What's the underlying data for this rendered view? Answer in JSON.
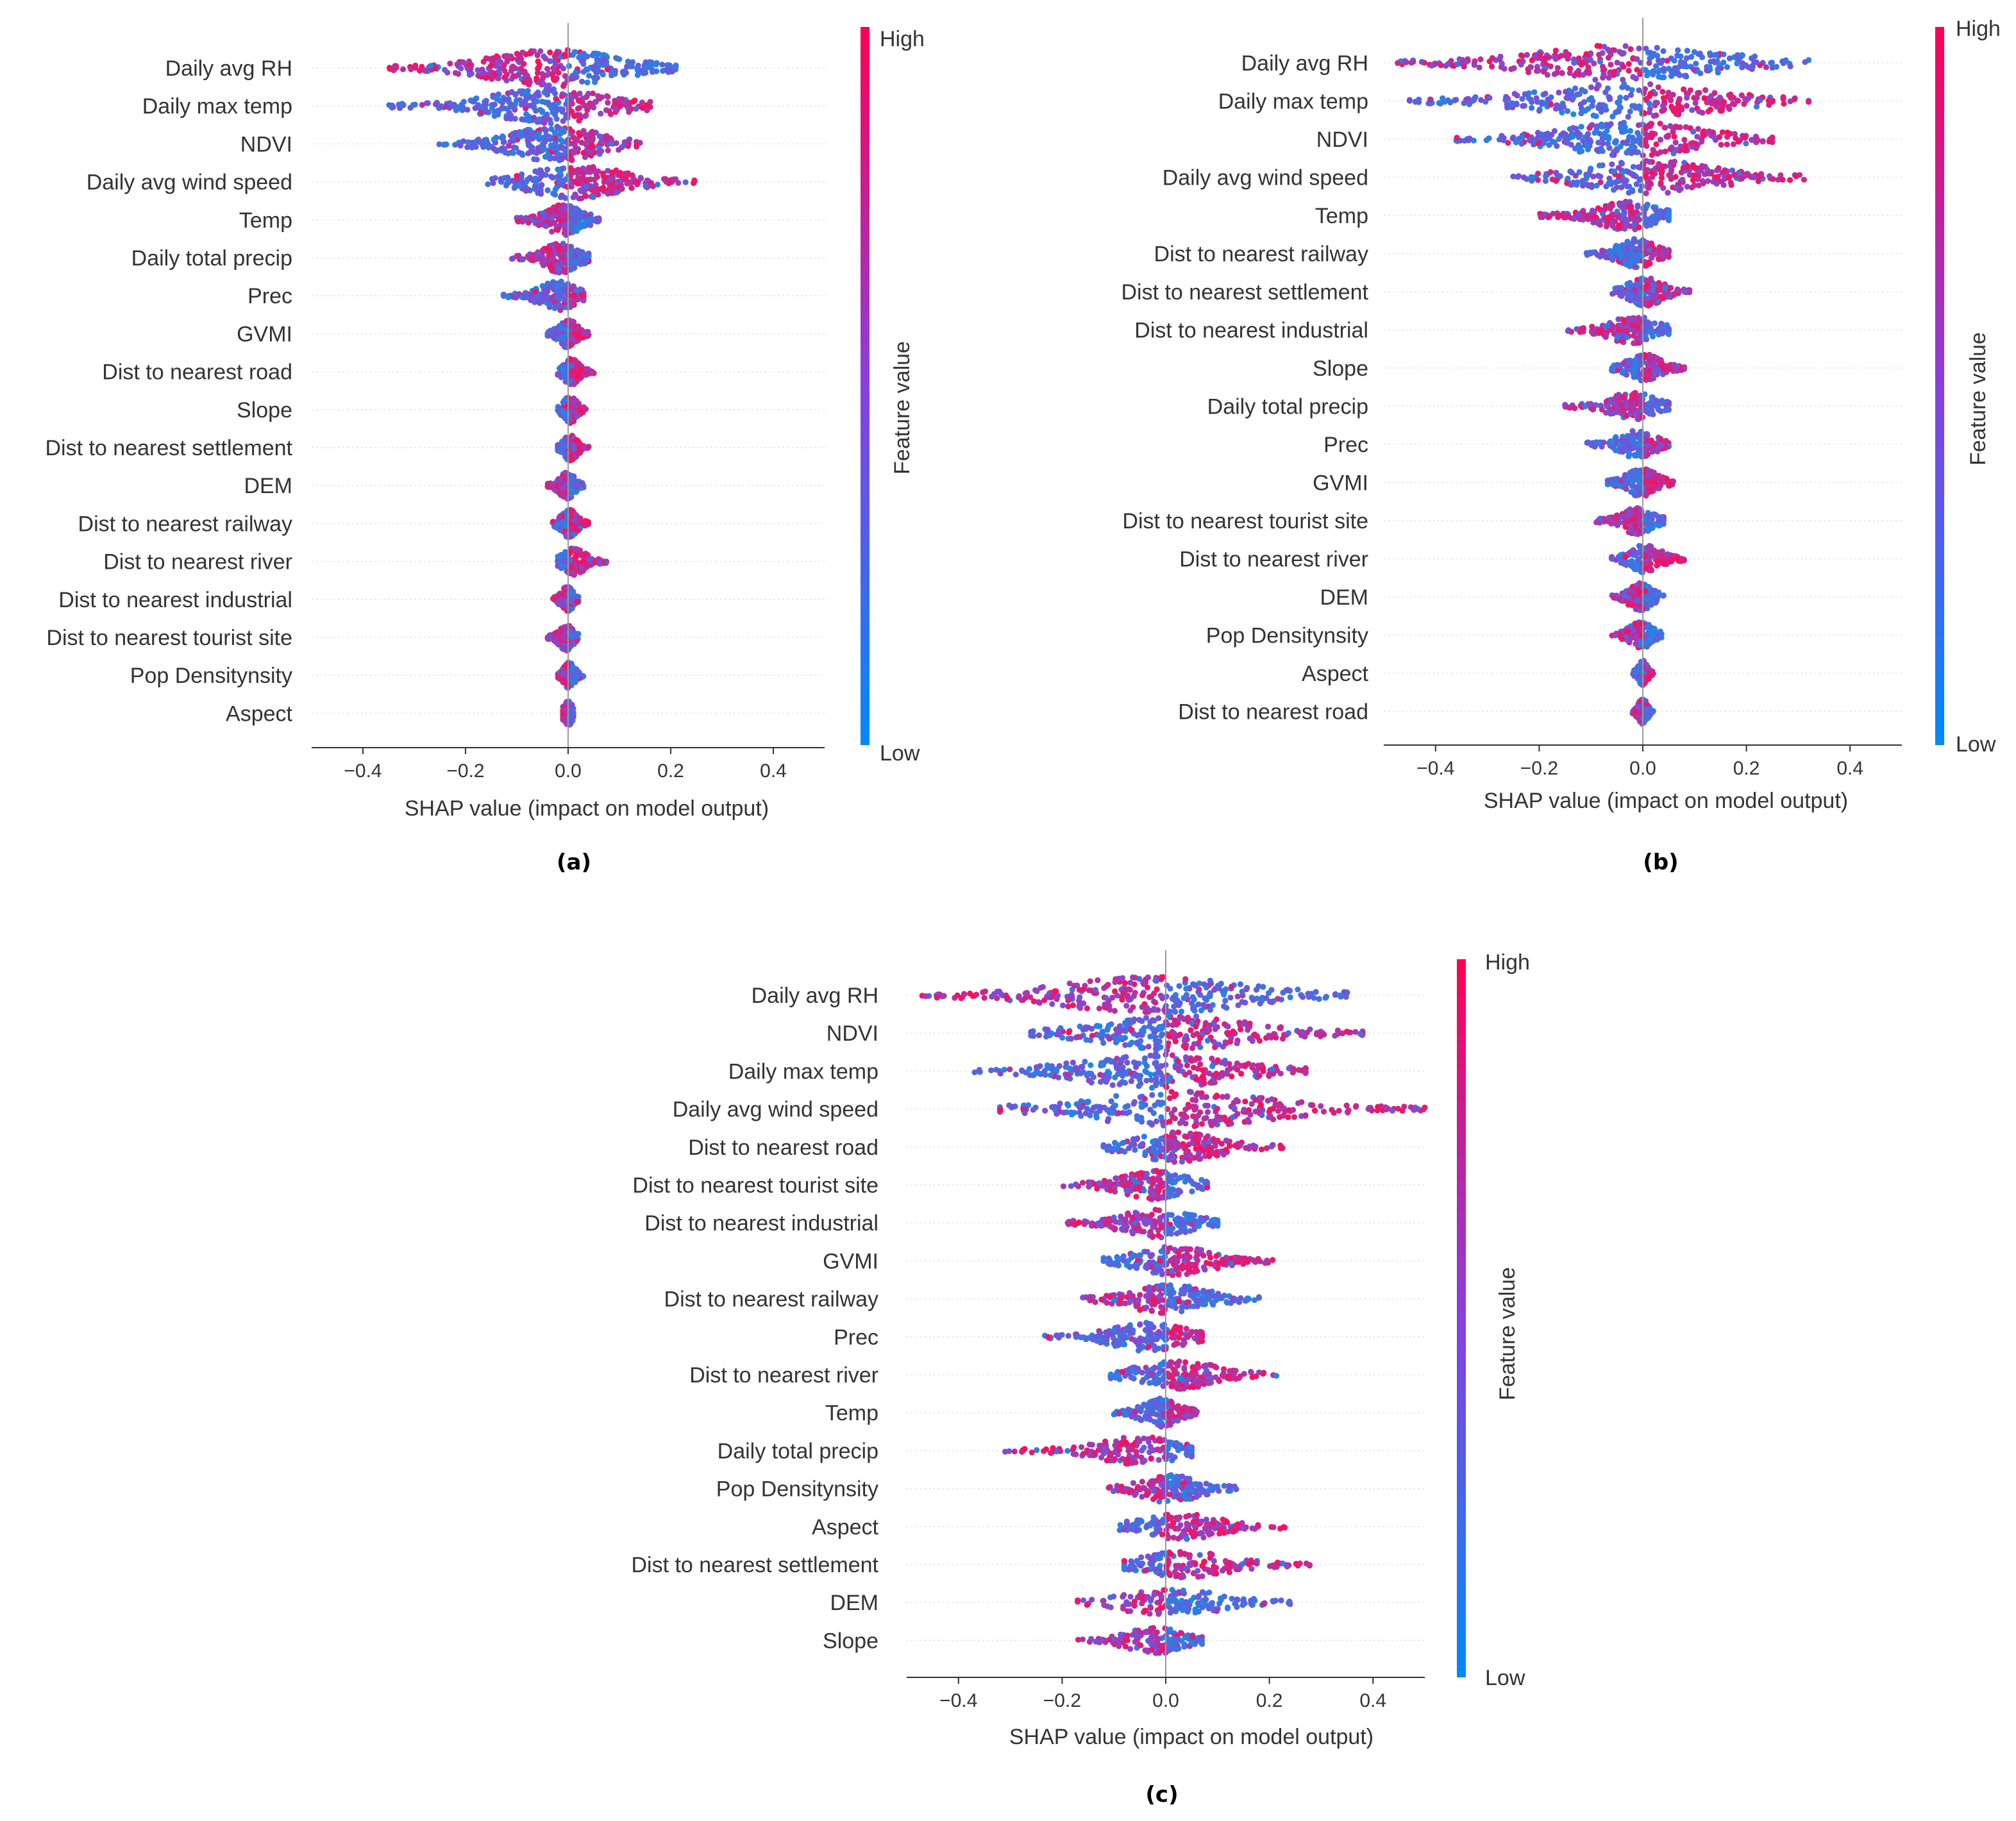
{
  "colors": {
    "low": "#1e88e5",
    "mid": "#7b4ed8",
    "high": "#ff0d57",
    "axis": "#333333",
    "zero_line": "#999999"
  },
  "chart_data": [
    {
      "type": "scatter",
      "subtype": "shap-beeswarm",
      "panel_label": "(a)",
      "xlabel": "SHAP value (impact on model output)",
      "xlim": [
        -0.5,
        0.5
      ],
      "x_ticks": [
        -0.4,
        -0.2,
        0.0,
        0.2,
        0.4
      ],
      "x_tick_labels": [
        "−0.4",
        "−0.2",
        "0.0",
        "0.2",
        "0.4"
      ],
      "colorbar": {
        "label": "Feature value",
        "high": "High",
        "low": "Low"
      },
      "features": [
        {
          "name": "Daily avg RH",
          "min": -0.35,
          "max": 0.21,
          "pos_color": "low",
          "spread": 1.0
        },
        {
          "name": "Daily max temp",
          "min": -0.35,
          "max": 0.16,
          "pos_color": "high",
          "spread": 0.85
        },
        {
          "name": "NDVI",
          "min": -0.26,
          "max": 0.14,
          "pos_color": "high",
          "spread": 0.85
        },
        {
          "name": "Daily avg wind speed",
          "min": -0.16,
          "max": 0.25,
          "pos_color": "high",
          "spread": 0.8
        },
        {
          "name": "Temp",
          "min": -0.1,
          "max": 0.06,
          "pos_color": "low",
          "spread": 0.6
        },
        {
          "name": "Daily total precip",
          "min": -0.11,
          "max": 0.04,
          "pos_color": "low",
          "spread": 0.55
        },
        {
          "name": "Prec",
          "min": -0.13,
          "max": 0.03,
          "pos_color": "high",
          "spread": 0.5
        },
        {
          "name": "GVMI",
          "min": -0.04,
          "max": 0.04,
          "pos_color": "high",
          "spread": 0.45
        },
        {
          "name": "Dist to nearest road",
          "min": -0.02,
          "max": 0.05,
          "pos_color": "high",
          "spread": 0.35
        },
        {
          "name": "Slope",
          "min": -0.02,
          "max": 0.04,
          "pos_color": "high",
          "spread": 0.35
        },
        {
          "name": "Dist to nearest settlement",
          "min": -0.02,
          "max": 0.04,
          "pos_color": "high",
          "spread": 0.35
        },
        {
          "name": "DEM",
          "min": -0.04,
          "max": 0.03,
          "pos_color": "low",
          "spread": 0.4
        },
        {
          "name": "Dist to nearest railway",
          "min": -0.03,
          "max": 0.04,
          "pos_color": "high",
          "spread": 0.4
        },
        {
          "name": "Dist to nearest river",
          "min": -0.02,
          "max": 0.08,
          "pos_color": "high",
          "spread": 0.35
        },
        {
          "name": "Dist to nearest industrial",
          "min": -0.03,
          "max": 0.02,
          "pos_color": "low",
          "spread": 0.35
        },
        {
          "name": "Dist to nearest tourist site",
          "min": -0.04,
          "max": 0.02,
          "pos_color": "low",
          "spread": 0.35
        },
        {
          "name": "Pop  Densitynsity",
          "min": -0.02,
          "max": 0.03,
          "pos_color": "low",
          "spread": 0.3
        },
        {
          "name": "Aspect",
          "min": -0.01,
          "max": 0.01,
          "pos_color": "low",
          "spread": 0.2
        }
      ]
    },
    {
      "type": "scatter",
      "subtype": "shap-beeswarm",
      "panel_label": "(b)",
      "xlabel": "SHAP value (impact on model output)",
      "xlim": [
        -0.5,
        0.5
      ],
      "x_ticks": [
        -0.4,
        -0.2,
        0.0,
        0.2,
        0.4
      ],
      "x_tick_labels": [
        "−0.4",
        "−0.2",
        "0.0",
        "0.2",
        "0.4"
      ],
      "colorbar": {
        "label": "Feature value",
        "high": "High",
        "low": "Low"
      },
      "features": [
        {
          "name": "Daily avg RH",
          "min": -0.48,
          "max": 0.32,
          "pos_color": "low",
          "spread": 0.95
        },
        {
          "name": "Daily max temp",
          "min": -0.45,
          "max": 0.32,
          "pos_color": "high",
          "spread": 0.85
        },
        {
          "name": "NDVI",
          "min": -0.36,
          "max": 0.25,
          "pos_color": "high",
          "spread": 0.85
        },
        {
          "name": "Daily avg wind speed",
          "min": -0.25,
          "max": 0.32,
          "pos_color": "high",
          "spread": 0.8
        },
        {
          "name": "Temp",
          "min": -0.2,
          "max": 0.05,
          "pos_color": "low",
          "spread": 0.55
        },
        {
          "name": "Dist to nearest railway",
          "min": -0.11,
          "max": 0.05,
          "pos_color": "high",
          "spread": 0.5
        },
        {
          "name": "Dist to nearest settlement",
          "min": -0.06,
          "max": 0.09,
          "pos_color": "high",
          "spread": 0.45
        },
        {
          "name": "Dist to nearest industrial",
          "min": -0.15,
          "max": 0.05,
          "pos_color": "low",
          "spread": 0.45
        },
        {
          "name": "Slope",
          "min": -0.06,
          "max": 0.08,
          "pos_color": "high",
          "spread": 0.4
        },
        {
          "name": "Daily total precip",
          "min": -0.15,
          "max": 0.05,
          "pos_color": "low",
          "spread": 0.4
        },
        {
          "name": "Prec",
          "min": -0.11,
          "max": 0.05,
          "pos_color": "high",
          "spread": 0.4
        },
        {
          "name": "GVMI",
          "min": -0.07,
          "max": 0.06,
          "pos_color": "high",
          "spread": 0.45
        },
        {
          "name": "Dist to nearest tourist site",
          "min": -0.09,
          "max": 0.04,
          "pos_color": "low",
          "spread": 0.4
        },
        {
          "name": "Dist to nearest river",
          "min": -0.06,
          "max": 0.08,
          "pos_color": "high",
          "spread": 0.4
        },
        {
          "name": "DEM",
          "min": -0.06,
          "max": 0.04,
          "pos_color": "low",
          "spread": 0.4
        },
        {
          "name": "Pop  Densitynsity",
          "min": -0.06,
          "max": 0.04,
          "pos_color": "low",
          "spread": 0.35
        },
        {
          "name": "Aspect",
          "min": -0.02,
          "max": 0.02,
          "pos_color": "high",
          "spread": 0.25
        },
        {
          "name": "Dist to nearest road",
          "min": -0.02,
          "max": 0.02,
          "pos_color": "low",
          "spread": 0.25
        }
      ]
    },
    {
      "type": "scatter",
      "subtype": "shap-beeswarm",
      "panel_label": "(c)",
      "xlabel": "SHAP value (impact on model output)",
      "xlim": [
        -0.5,
        0.5
      ],
      "x_ticks": [
        -0.4,
        -0.2,
        0.0,
        0.2,
        0.4
      ],
      "x_tick_labels": [
        "−0.4",
        "−0.2",
        "0.0",
        "0.2",
        "0.4"
      ],
      "colorbar": {
        "label": "Feature value",
        "high": "High",
        "low": "Low"
      },
      "features": [
        {
          "name": "Daily avg RH",
          "min": -0.47,
          "max": 0.35,
          "pos_color": "low",
          "spread": 0.95
        },
        {
          "name": "NDVI",
          "min": -0.26,
          "max": 0.38,
          "pos_color": "high",
          "spread": 0.85
        },
        {
          "name": "Daily max temp",
          "min": -0.37,
          "max": 0.27,
          "pos_color": "high",
          "spread": 0.85
        },
        {
          "name": "Daily avg wind speed",
          "min": -0.32,
          "max": 0.5,
          "pos_color": "high",
          "spread": 0.85
        },
        {
          "name": "Dist to nearest road",
          "min": -0.12,
          "max": 0.23,
          "pos_color": "high",
          "spread": 0.55
        },
        {
          "name": "Dist to nearest tourist site",
          "min": -0.2,
          "max": 0.08,
          "pos_color": "low",
          "spread": 0.5
        },
        {
          "name": "Dist to nearest industrial",
          "min": -0.19,
          "max": 0.1,
          "pos_color": "low",
          "spread": 0.5
        },
        {
          "name": "GVMI",
          "min": -0.12,
          "max": 0.21,
          "pos_color": "high",
          "spread": 0.5
        },
        {
          "name": "Dist to nearest railway",
          "min": -0.16,
          "max": 0.18,
          "pos_color": "low",
          "spread": 0.5
        },
        {
          "name": "Prec",
          "min": -0.24,
          "max": 0.07,
          "pos_color": "high",
          "spread": 0.5
        },
        {
          "name": "Dist to nearest river",
          "min": -0.11,
          "max": 0.22,
          "pos_color": "high",
          "spread": 0.5
        },
        {
          "name": "Temp",
          "min": -0.1,
          "max": 0.06,
          "pos_color": "high",
          "spread": 0.45
        },
        {
          "name": "Daily total precip",
          "min": -0.31,
          "max": 0.05,
          "pos_color": "low",
          "spread": 0.4
        },
        {
          "name": "Pop  Densitynsity",
          "min": -0.11,
          "max": 0.14,
          "pos_color": "low",
          "spread": 0.4
        },
        {
          "name": "Aspect",
          "min": -0.09,
          "max": 0.23,
          "pos_color": "high",
          "spread": 0.4
        },
        {
          "name": "Dist to nearest settlement",
          "min": -0.08,
          "max": 0.28,
          "pos_color": "high",
          "spread": 0.4
        },
        {
          "name": "DEM",
          "min": -0.17,
          "max": 0.24,
          "pos_color": "low",
          "spread": 0.4
        },
        {
          "name": "Slope",
          "min": -0.17,
          "max": 0.07,
          "pos_color": "low",
          "spread": 0.35
        }
      ]
    }
  ]
}
